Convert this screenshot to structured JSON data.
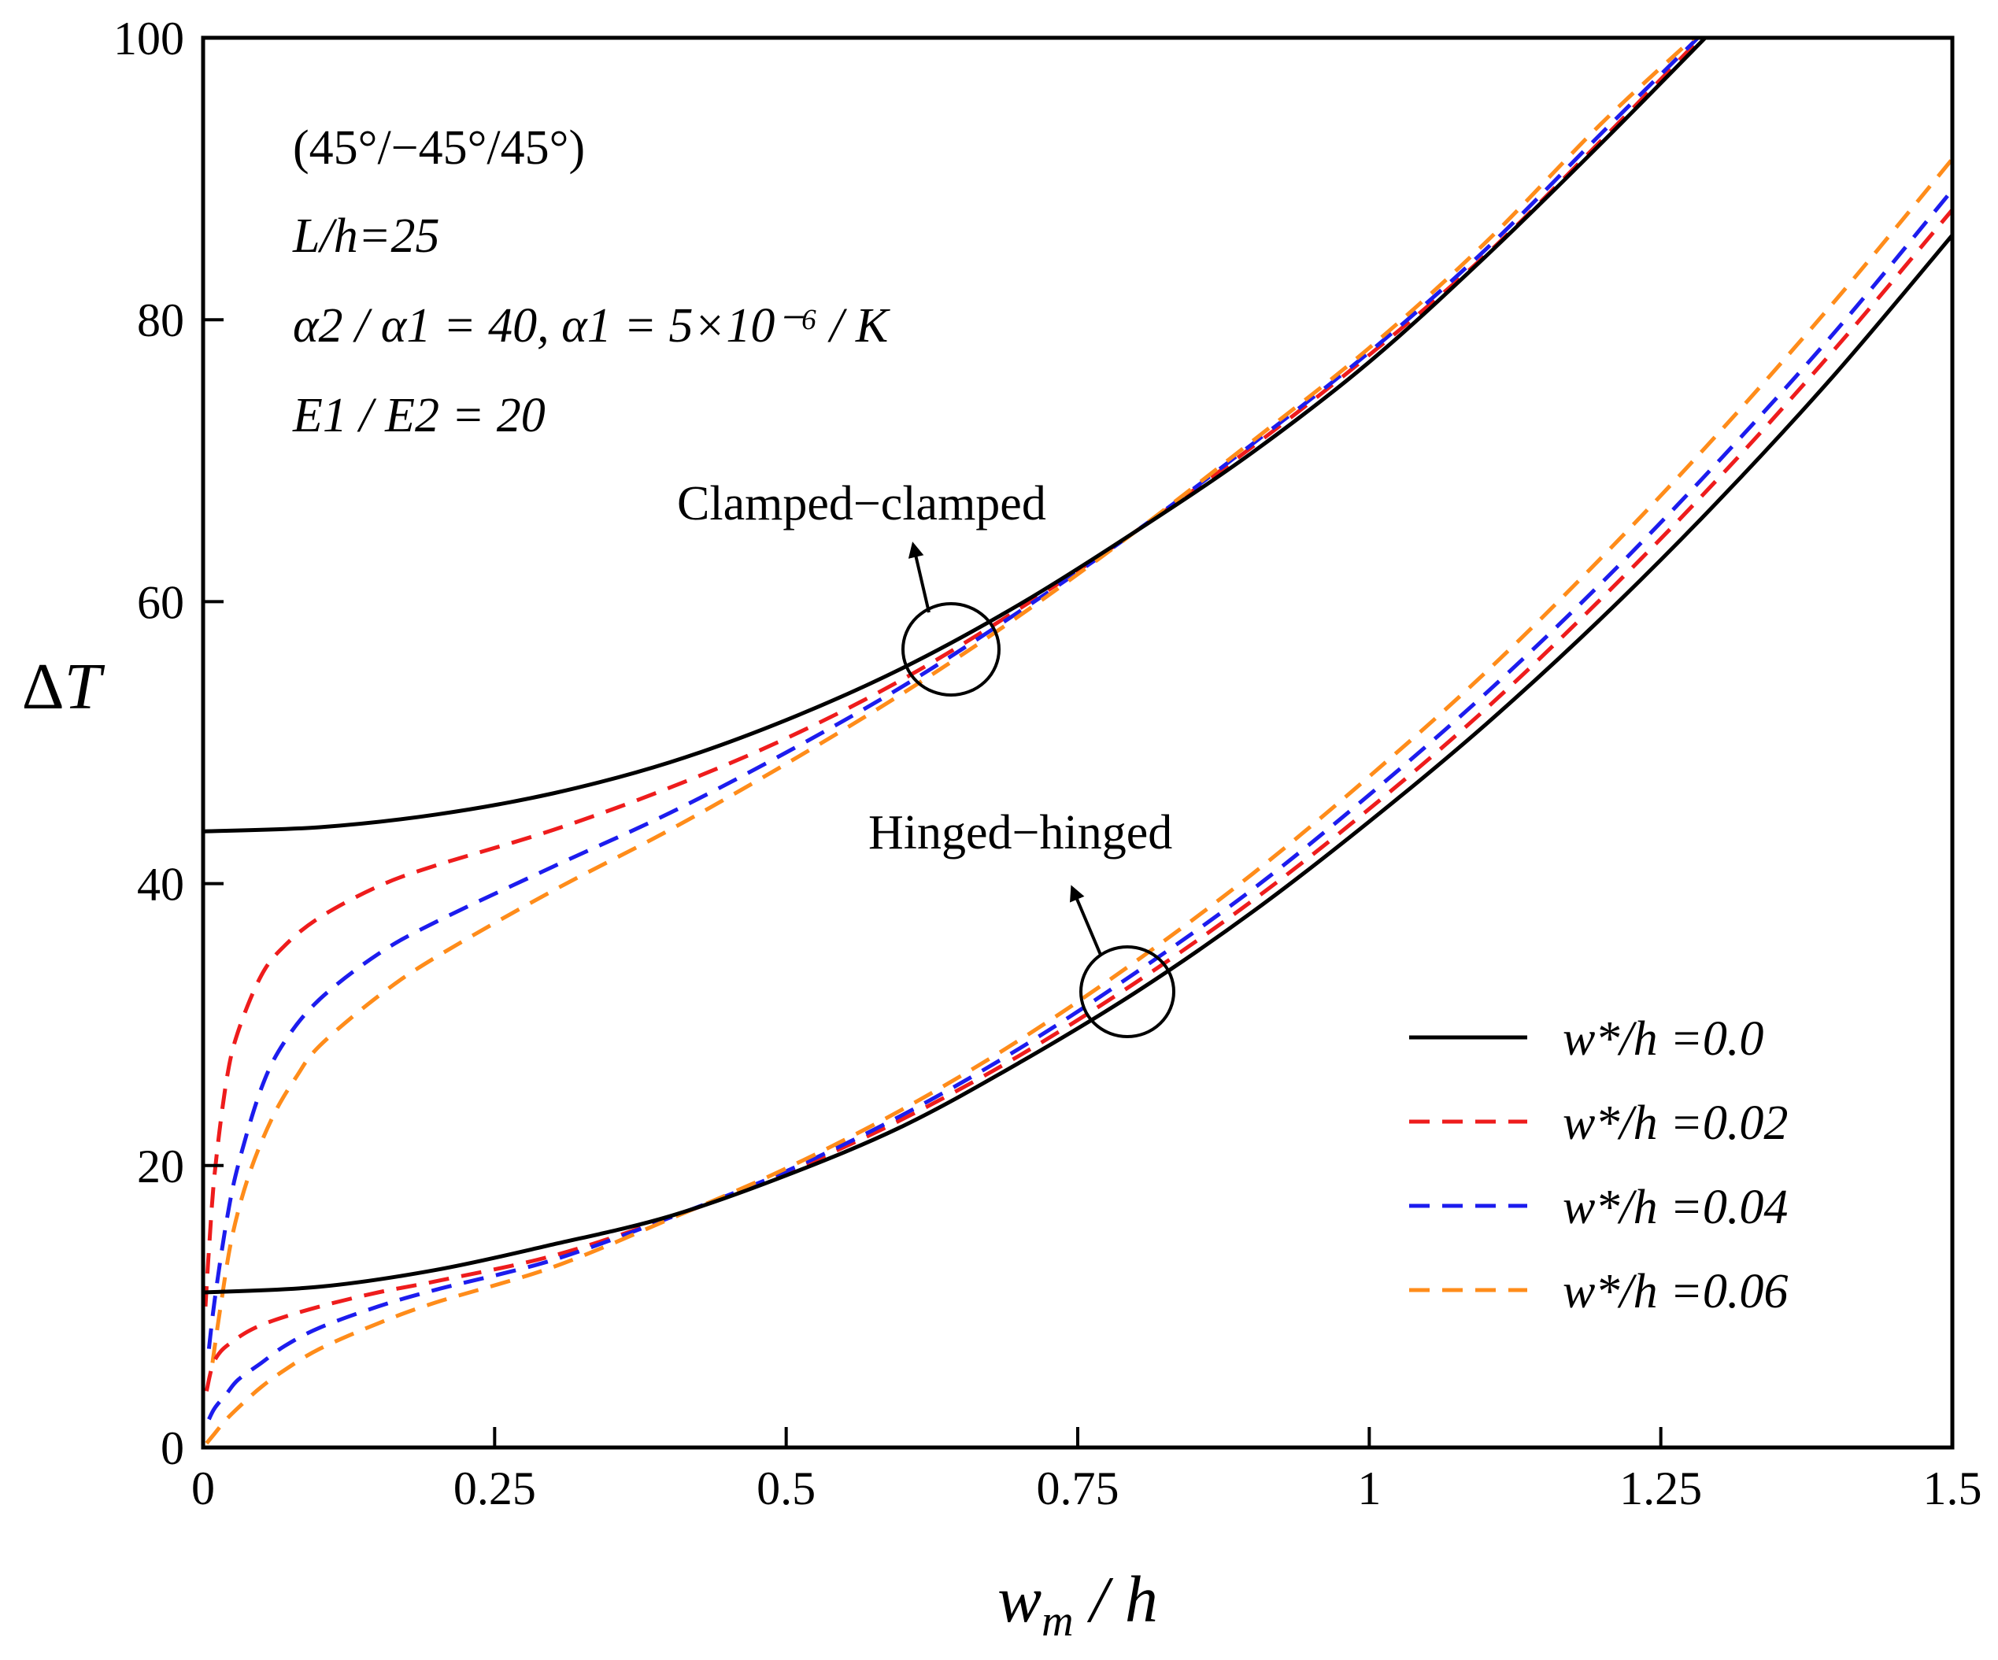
{
  "chart_data": {
    "type": "line",
    "title": "",
    "xlabel": "w_m / h",
    "ylabel": "ΔT",
    "xlim": [
      0,
      1.5
    ],
    "ylim": [
      0,
      100
    ],
    "xticks": [
      0,
      0.25,
      0.5,
      0.75,
      1,
      1.25,
      1.5
    ],
    "xtick_labels": [
      "0",
      "0.25",
      "0.5",
      "0.75",
      "1",
      "1.25",
      "1.5"
    ],
    "yticks": [
      0,
      20,
      40,
      60,
      80,
      100
    ],
    "ytick_labels": [
      "0",
      "20",
      "40",
      "60",
      "80",
      "100"
    ],
    "parameters": {
      "layup": "(45°/−45°/45°)",
      "slenderness": "L/h=25",
      "expansion": "α2 / α1 = 40,  α1 = 5×10⁻⁶ / K",
      "modulus": "E1 / E2 = 20"
    },
    "annotations": [
      {
        "text": "Clamped−clamped",
        "at": [
          0.64,
          56.5
        ]
      },
      {
        "text": "Hinged−hinged",
        "at": [
          0.79,
          32.5
        ]
      }
    ],
    "legend_position": "bottom-right",
    "legend": [
      {
        "label": "w*/h =0.0",
        "color": "#000000",
        "style": "solid"
      },
      {
        "label": "w*/h =0.02",
        "color": "#ee1c1c",
        "style": "dashed"
      },
      {
        "label": "w*/h =0.04",
        "color": "#1c1cee",
        "style": "dashed"
      },
      {
        "label": "w*/h =0.06",
        "color": "#ff8c1a",
        "style": "dashed"
      }
    ],
    "series": [
      {
        "group": "Clamped-clamped",
        "name": "w*/h =0.0",
        "color": "#000000",
        "dash": false,
        "x": [
          0,
          0.1,
          0.2,
          0.3,
          0.4,
          0.5,
          0.6,
          0.7,
          0.8,
          0.9,
          1.0,
          1.1,
          1.2,
          1.3
        ],
        "y": [
          43.7,
          44.0,
          44.9,
          46.4,
          48.6,
          51.6,
          55.3,
          59.8,
          65.0,
          70.6,
          77.0,
          84.5,
          92.6,
          101.0
        ]
      },
      {
        "group": "Clamped-clamped",
        "name": "w*/h =0.02",
        "color": "#ee1c1c",
        "dash": true,
        "x": [
          0.002,
          0.005,
          0.01,
          0.02,
          0.03,
          0.05,
          0.07,
          0.1,
          0.15,
          0.2,
          0.3,
          0.4,
          0.5,
          0.6,
          0.7,
          0.8,
          0.9,
          1.0,
          1.1,
          1.2,
          1.29
        ],
        "y": [
          10.0,
          14.0,
          19.5,
          26.0,
          29.5,
          33.5,
          35.6,
          37.6,
          39.8,
          41.3,
          43.8,
          46.8,
          50.3,
          54.5,
          59.5,
          65.0,
          71.0,
          77.5,
          84.6,
          92.8,
          100.5
        ]
      },
      {
        "group": "Clamped-clamped",
        "name": "w*/h =0.04",
        "color": "#1c1cee",
        "dash": true,
        "x": [
          0.005,
          0.01,
          0.02,
          0.03,
          0.05,
          0.07,
          0.1,
          0.15,
          0.2,
          0.3,
          0.4,
          0.5,
          0.6,
          0.7,
          0.8,
          0.9,
          1.0,
          1.1,
          1.2,
          1.288
        ],
        "y": [
          7.0,
          10.5,
          16.0,
          20.0,
          25.5,
          28.8,
          31.8,
          35.0,
          37.3,
          41.2,
          45.0,
          49.3,
          54.0,
          59.3,
          65.0,
          71.2,
          77.7,
          85.0,
          93.3,
          100.5
        ]
      },
      {
        "group": "Clamped-clamped",
        "name": "w*/h =0.06",
        "color": "#ff8c1a",
        "dash": true,
        "x": [
          0.008,
          0.015,
          0.025,
          0.04,
          0.06,
          0.08,
          0.1,
          0.15,
          0.2,
          0.3,
          0.4,
          0.5,
          0.6,
          0.7,
          0.8,
          0.9,
          1.0,
          1.1,
          1.2,
          1.285
        ],
        "y": [
          6.0,
          10.0,
          15.0,
          19.5,
          23.5,
          26.3,
          28.5,
          32.0,
          34.8,
          39.5,
          43.8,
          48.5,
          53.5,
          59.0,
          65.0,
          71.4,
          78.0,
          85.5,
          94.0,
          100.5
        ]
      },
      {
        "group": "Hinged-hinged",
        "name": "w*/h =0.0",
        "color": "#000000",
        "dash": false,
        "x": [
          0,
          0.1,
          0.2,
          0.3,
          0.4,
          0.5,
          0.6,
          0.7,
          0.8,
          0.9,
          1.0,
          1.1,
          1.2,
          1.3,
          1.4,
          1.5
        ],
        "y": [
          11.0,
          11.4,
          12.6,
          14.4,
          16.4,
          19.3,
          22.8,
          27.3,
          32.3,
          38.0,
          44.4,
          51.3,
          58.9,
          67.2,
          76.2,
          86.0
        ]
      },
      {
        "group": "Hinged-hinged",
        "name": "w*/h =0.02",
        "color": "#ee1c1c",
        "dash": true,
        "x": [
          0.003,
          0.008,
          0.015,
          0.025,
          0.04,
          0.06,
          0.1,
          0.15,
          0.2,
          0.3,
          0.4,
          0.5,
          0.6,
          0.7,
          0.8,
          0.9,
          1.0,
          1.1,
          1.2,
          1.3,
          1.4,
          1.5
        ],
        "y": [
          4.0,
          5.8,
          6.8,
          7.5,
          8.3,
          9.0,
          10.0,
          11.0,
          11.8,
          13.6,
          16.3,
          19.5,
          23.3,
          27.8,
          33.0,
          38.8,
          45.3,
          52.4,
          60.3,
          68.8,
          78.0,
          87.8
        ]
      },
      {
        "group": "Hinged-hinged",
        "name": "w*/h =0.04",
        "color": "#1c1cee",
        "dash": true,
        "x": [
          0.005,
          0.01,
          0.02,
          0.03,
          0.05,
          0.07,
          0.1,
          0.15,
          0.2,
          0.3,
          0.4,
          0.5,
          0.6,
          0.7,
          0.8,
          0.9,
          1.0,
          1.1,
          1.2,
          1.3,
          1.4,
          1.5
        ],
        "y": [
          2.0,
          2.8,
          3.8,
          4.8,
          6.0,
          7.2,
          8.5,
          10.0,
          11.2,
          13.3,
          16.3,
          19.6,
          23.6,
          28.3,
          33.7,
          39.6,
          46.3,
          53.5,
          61.4,
          70.0,
          79.2,
          89.2
        ]
      },
      {
        "group": "Hinged-hinged",
        "name": "w*/h =0.06",
        "color": "#ff8c1a",
        "dash": true,
        "x": [
          0.003,
          0.01,
          0.02,
          0.035,
          0.05,
          0.07,
          0.1,
          0.15,
          0.2,
          0.3,
          0.4,
          0.5,
          0.6,
          0.7,
          0.8,
          0.9,
          1.0,
          1.1,
          1.2,
          1.3,
          1.4,
          1.5
        ],
        "y": [
          0.3,
          1.0,
          2.0,
          3.2,
          4.3,
          5.5,
          7.0,
          8.8,
          10.3,
          12.8,
          16.2,
          19.8,
          24.0,
          28.9,
          34.5,
          40.7,
          47.6,
          55.0,
          63.2,
          72.0,
          81.4,
          91.4
        ]
      }
    ]
  }
}
